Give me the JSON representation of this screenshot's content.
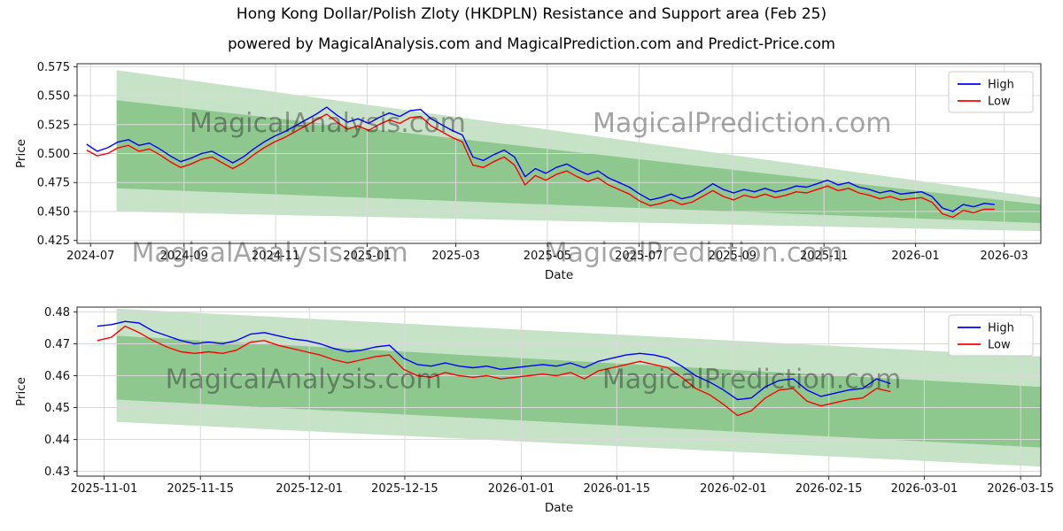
{
  "page": {
    "title": "Hong Kong Dollar/Polish Zloty (HKDPLN) Resistance and Support area (Feb 25)",
    "subtitle": "powered by MagicalAnalysis.com and MagicalPrediction.com and Predict-Price.com"
  },
  "watermark": {
    "color": "#9e9e9e",
    "opacity": 0.38
  },
  "colors": {
    "high": "#0000ff",
    "low": "#ff0000",
    "band": "#008000",
    "grid": "#d9d9d9",
    "spine": "#2a2a2a"
  },
  "chart_data": [
    {
      "type": "line",
      "name": "main-price-chart",
      "xlabel": "Date",
      "ylabel": "Price",
      "ylim": [
        0.4225,
        0.5775
      ],
      "grid": true,
      "legend_position": "upper right",
      "y_ticks": [
        {
          "v": 0.425,
          "label": "0.425"
        },
        {
          "v": 0.45,
          "label": "0.450"
        },
        {
          "v": 0.475,
          "label": "0.475"
        },
        {
          "v": 0.5,
          "label": "0.500"
        },
        {
          "v": 0.525,
          "label": "0.525"
        },
        {
          "v": 0.55,
          "label": "0.550"
        },
        {
          "v": 0.575,
          "label": "0.575"
        }
      ],
      "x_ticks": [
        {
          "pos": 0.014,
          "label": "2024-07"
        },
        {
          "pos": 0.111,
          "label": "2024-09"
        },
        {
          "pos": 0.206,
          "label": "2024-11"
        },
        {
          "pos": 0.301,
          "label": "2025-01"
        },
        {
          "pos": 0.393,
          "label": "2025-03"
        },
        {
          "pos": 0.488,
          "label": "2025-05"
        },
        {
          "pos": 0.583,
          "label": "2025-07"
        },
        {
          "pos": 0.68,
          "label": "2025-09"
        },
        {
          "pos": 0.775,
          "label": "2025-11"
        },
        {
          "pos": 0.87,
          "label": "2026-01"
        },
        {
          "pos": 0.962,
          "label": "2026-03"
        }
      ],
      "bands": [
        {
          "name": "resistance-band-outer",
          "opacity": 0.22,
          "x": [
            0.041,
            1.0
          ],
          "left": [
            0.45,
            0.572
          ],
          "right": [
            0.433,
            0.462
          ]
        },
        {
          "name": "resistance-band-inner",
          "opacity": 0.28,
          "x": [
            0.041,
            1.0
          ],
          "left": [
            0.47,
            0.546
          ],
          "right": [
            0.44,
            0.456
          ]
        }
      ],
      "series": [
        {
          "name": "High",
          "color": "#0000ff",
          "x_start": 0.01,
          "x_end": 0.952,
          "values": [
            0.508,
            0.502,
            0.505,
            0.51,
            0.512,
            0.507,
            0.509,
            0.504,
            0.498,
            0.493,
            0.496,
            0.5,
            0.502,
            0.497,
            0.492,
            0.497,
            0.504,
            0.51,
            0.515,
            0.519,
            0.524,
            0.529,
            0.534,
            0.54,
            0.533,
            0.527,
            0.53,
            0.526,
            0.531,
            0.535,
            0.532,
            0.537,
            0.538,
            0.53,
            0.525,
            0.52,
            0.516,
            0.497,
            0.494,
            0.499,
            0.503,
            0.497,
            0.48,
            0.487,
            0.483,
            0.488,
            0.491,
            0.486,
            0.482,
            0.485,
            0.479,
            0.475,
            0.471,
            0.465,
            0.46,
            0.462,
            0.465,
            0.461,
            0.463,
            0.468,
            0.474,
            0.469,
            0.466,
            0.469,
            0.467,
            0.47,
            0.467,
            0.469,
            0.472,
            0.471,
            0.474,
            0.477,
            0.473,
            0.475,
            0.471,
            0.469,
            0.466,
            0.468,
            0.465,
            0.466,
            0.467,
            0.463,
            0.453,
            0.45,
            0.456,
            0.454,
            0.457,
            0.456
          ]
        },
        {
          "name": "Low",
          "color": "#ff0000",
          "x_start": 0.01,
          "x_end": 0.952,
          "values": [
            0.503,
            0.498,
            0.5,
            0.505,
            0.507,
            0.502,
            0.504,
            0.499,
            0.493,
            0.488,
            0.491,
            0.495,
            0.497,
            0.492,
            0.487,
            0.492,
            0.499,
            0.505,
            0.51,
            0.514,
            0.519,
            0.524,
            0.529,
            0.534,
            0.527,
            0.521,
            0.524,
            0.52,
            0.525,
            0.529,
            0.526,
            0.531,
            0.532,
            0.524,
            0.519,
            0.514,
            0.51,
            0.49,
            0.488,
            0.493,
            0.497,
            0.49,
            0.473,
            0.481,
            0.477,
            0.482,
            0.485,
            0.48,
            0.476,
            0.479,
            0.473,
            0.469,
            0.465,
            0.459,
            0.455,
            0.457,
            0.46,
            0.456,
            0.458,
            0.463,
            0.468,
            0.463,
            0.46,
            0.464,
            0.462,
            0.465,
            0.462,
            0.464,
            0.467,
            0.466,
            0.469,
            0.472,
            0.468,
            0.47,
            0.466,
            0.464,
            0.461,
            0.463,
            0.46,
            0.461,
            0.462,
            0.458,
            0.448,
            0.445,
            0.451,
            0.449,
            0.452,
            0.452
          ]
        }
      ],
      "legend": [
        "High",
        "Low"
      ],
      "watermarks": [
        {
          "text": "MagicalAnalysis.com",
          "x": 0.26,
          "y": 0.38
        },
        {
          "text": "MagicalPrediction.com",
          "x": 0.69,
          "y": 0.38
        },
        {
          "text": "MagicalAnalysis.com",
          "x": 0.2,
          "y": 1.1
        },
        {
          "text": "MagicalPrediction.com",
          "x": 0.64,
          "y": 1.1
        }
      ]
    },
    {
      "type": "line",
      "name": "zoomed-price-chart",
      "xlabel": "Date",
      "ylabel": "Price",
      "ylim": [
        0.4285,
        0.4815
      ],
      "grid": true,
      "legend_position": "upper right",
      "y_ticks": [
        {
          "v": 0.43,
          "label": "0.43"
        },
        {
          "v": 0.44,
          "label": "0.44"
        },
        {
          "v": 0.45,
          "label": "0.45"
        },
        {
          "v": 0.46,
          "label": "0.46"
        },
        {
          "v": 0.47,
          "label": "0.47"
        },
        {
          "v": 0.48,
          "label": "0.48"
        }
      ],
      "x_ticks": [
        {
          "pos": 0.028,
          "label": "2025-11-01"
        },
        {
          "pos": 0.128,
          "label": "2025-11-15"
        },
        {
          "pos": 0.241,
          "label": "2025-12-01"
        },
        {
          "pos": 0.34,
          "label": "2025-12-15"
        },
        {
          "pos": 0.461,
          "label": "2026-01-01"
        },
        {
          "pos": 0.56,
          "label": "2026-01-15"
        },
        {
          "pos": 0.681,
          "label": "2026-02-01"
        },
        {
          "pos": 0.78,
          "label": "2026-02-15"
        },
        {
          "pos": 0.879,
          "label": "2026-03-01"
        },
        {
          "pos": 0.979,
          "label": "2026-03-15"
        }
      ],
      "bands": [
        {
          "name": "resistance-band-outer",
          "opacity": 0.22,
          "x": [
            0.041,
            1.0
          ],
          "left": [
            0.4455,
            0.481
          ],
          "right": [
            0.4315,
            0.466
          ]
        },
        {
          "name": "resistance-band-inner",
          "opacity": 0.28,
          "x": [
            0.041,
            1.0
          ],
          "left": [
            0.4525,
            0.4725
          ],
          "right": [
            0.4375,
            0.4565
          ]
        }
      ],
      "series": [
        {
          "name": "High",
          "color": "#0000ff",
          "x_start": 0.021,
          "x_end": 0.844,
          "values": [
            0.4755,
            0.476,
            0.477,
            0.4765,
            0.474,
            0.4725,
            0.471,
            0.47,
            0.4705,
            0.47,
            0.471,
            0.473,
            0.4735,
            0.4725,
            0.4715,
            0.471,
            0.47,
            0.4685,
            0.4675,
            0.468,
            0.469,
            0.4695,
            0.4655,
            0.4635,
            0.463,
            0.464,
            0.463,
            0.4625,
            0.463,
            0.462,
            0.4625,
            0.463,
            0.4635,
            0.463,
            0.464,
            0.4625,
            0.4645,
            0.4655,
            0.4665,
            0.467,
            0.4665,
            0.4655,
            0.463,
            0.46,
            0.458,
            0.4555,
            0.4525,
            0.453,
            0.4565,
            0.4585,
            0.459,
            0.4555,
            0.4535,
            0.4545,
            0.4555,
            0.456,
            0.459,
            0.4575
          ]
        },
        {
          "name": "Low",
          "color": "#ff0000",
          "x_start": 0.021,
          "x_end": 0.844,
          "values": [
            0.471,
            0.472,
            0.4755,
            0.4735,
            0.471,
            0.469,
            0.4675,
            0.467,
            0.4675,
            0.467,
            0.468,
            0.4705,
            0.471,
            0.4695,
            0.4685,
            0.4675,
            0.4665,
            0.465,
            0.464,
            0.465,
            0.466,
            0.4665,
            0.462,
            0.46,
            0.4595,
            0.461,
            0.46,
            0.4595,
            0.46,
            0.459,
            0.4595,
            0.46,
            0.4605,
            0.46,
            0.461,
            0.459,
            0.4615,
            0.4625,
            0.4635,
            0.4645,
            0.4635,
            0.4625,
            0.4595,
            0.456,
            0.454,
            0.451,
            0.4475,
            0.449,
            0.453,
            0.4555,
            0.456,
            0.452,
            0.4505,
            0.4515,
            0.4525,
            0.453,
            0.456,
            0.455
          ]
        }
      ],
      "legend": [
        "High",
        "Low"
      ],
      "watermarks": [
        {
          "text": "MagicalAnalysis.com",
          "x": 0.235,
          "y": 0.48
        },
        {
          "text": "MagicalPrediction.com",
          "x": 0.7,
          "y": 0.48
        }
      ]
    }
  ]
}
